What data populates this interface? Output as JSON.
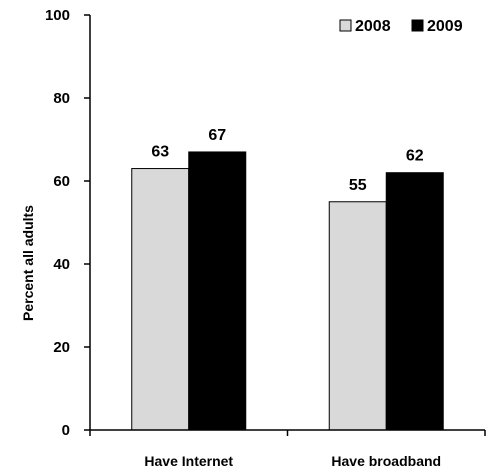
{
  "chart_data": {
    "type": "bar",
    "categories": [
      "Have Internet",
      "Have broadband"
    ],
    "series": [
      {
        "name": "2008",
        "values": [
          63,
          55
        ],
        "color": "#d9d9d9"
      },
      {
        "name": "2009",
        "values": [
          67,
          62
        ],
        "color": "#000000"
      }
    ],
    "ylabel": "Percent all adults",
    "ylim": [
      0,
      100
    ],
    "yticks": [
      0,
      20,
      40,
      60,
      80,
      100
    ],
    "grid": false,
    "legend_position": "top-right"
  }
}
